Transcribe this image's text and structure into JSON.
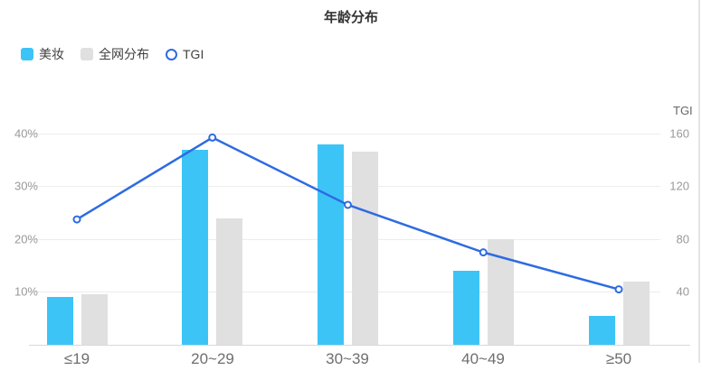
{
  "title": "年龄分布",
  "legend": {
    "items": [
      {
        "label": "美妆",
        "type": "bar",
        "color": "#3DC4F6"
      },
      {
        "label": "全网分布",
        "type": "bar",
        "color": "#E0E0E0"
      },
      {
        "label": "TGI",
        "type": "line",
        "color": "#2E6BE2"
      }
    ]
  },
  "chart_data": {
    "type": "bar+line",
    "title": "年龄分布",
    "categories": [
      "≤19",
      "20~29",
      "30~39",
      "40~49",
      "≥50"
    ],
    "series": [
      {
        "name": "美妆",
        "type": "bar",
        "axis": "left",
        "unit": "%",
        "color": "#3DC4F6",
        "values": [
          9,
          37,
          38,
          14,
          5.5
        ]
      },
      {
        "name": "全网分布",
        "type": "bar",
        "axis": "left",
        "unit": "%",
        "color": "#E0E0E0",
        "values": [
          9.5,
          24,
          36.5,
          20,
          12
        ]
      },
      {
        "name": "TGI",
        "type": "line",
        "axis": "right",
        "color": "#2E6BE2",
        "marker": "open-circle",
        "values": [
          95,
          157,
          106,
          70,
          42
        ]
      }
    ],
    "left_axis": {
      "ticks": [
        "10%",
        "20%",
        "30%",
        "40%"
      ],
      "ylim": [
        0,
        45
      ],
      "grid": true
    },
    "right_axis": {
      "title": "TGI",
      "ticks": [
        "40",
        "80",
        "120",
        "160"
      ],
      "ylim": [
        0,
        180
      ]
    },
    "legend_position": "top-left"
  }
}
